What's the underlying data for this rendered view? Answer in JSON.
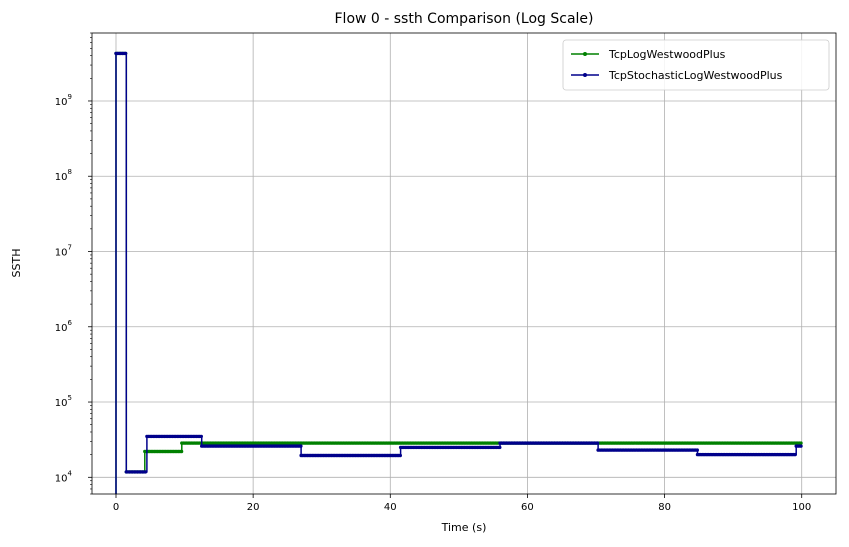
{
  "chart_data": {
    "type": "line",
    "title": "Flow 0 - ssth Comparison (Log Scale)",
    "xlabel": "Time (s)",
    "ylabel": "SSTH",
    "xlim": [
      -3.5,
      105
    ],
    "ylim": [
      6000,
      8000000000
    ],
    "y_scale": "log",
    "x_ticks": [
      0,
      20,
      40,
      60,
      80,
      100
    ],
    "y_ticks": [
      {
        "value": 10000,
        "base": "10",
        "exp": "4"
      },
      {
        "value": 100000,
        "base": "10",
        "exp": "5"
      },
      {
        "value": 1000000,
        "base": "10",
        "exp": "6"
      },
      {
        "value": 10000000,
        "base": "10",
        "exp": "7"
      },
      {
        "value": 100000000,
        "base": "10",
        "exp": "8"
      },
      {
        "value": 1000000000,
        "base": "10",
        "exp": "9"
      }
    ],
    "grid": true,
    "legend_position": "top-right",
    "series": [
      {
        "name": "TcpLogWestwoodPlus",
        "color": "#008000",
        "points": [
          [
            0,
            6000
          ],
          [
            0,
            4290000000
          ],
          [
            1.5,
            4290000000
          ],
          [
            1.5,
            11800
          ],
          [
            4.2,
            11800
          ],
          [
            4.2,
            22000
          ],
          [
            9.6,
            22000
          ],
          [
            9.6,
            28500
          ],
          [
            100,
            28500
          ]
        ]
      },
      {
        "name": "TcpStochasticLogWestwoodPlus",
        "color": "#00008b",
        "points": [
          [
            0,
            6000
          ],
          [
            0,
            4290000000
          ],
          [
            1.5,
            4290000000
          ],
          [
            1.5,
            11800
          ],
          [
            4.5,
            11800
          ],
          [
            4.5,
            35000
          ],
          [
            12.5,
            35000
          ],
          [
            12.5,
            26000
          ],
          [
            27,
            26000
          ],
          [
            27,
            19500
          ],
          [
            41.5,
            19500
          ],
          [
            41.5,
            25000
          ],
          [
            56,
            25000
          ],
          [
            56,
            28500
          ],
          [
            70.3,
            28500
          ],
          [
            70.3,
            23000
          ],
          [
            84.8,
            23000
          ],
          [
            84.8,
            20000
          ],
          [
            99.2,
            20000
          ],
          [
            99.2,
            26000
          ],
          [
            100,
            26000
          ]
        ]
      }
    ]
  }
}
